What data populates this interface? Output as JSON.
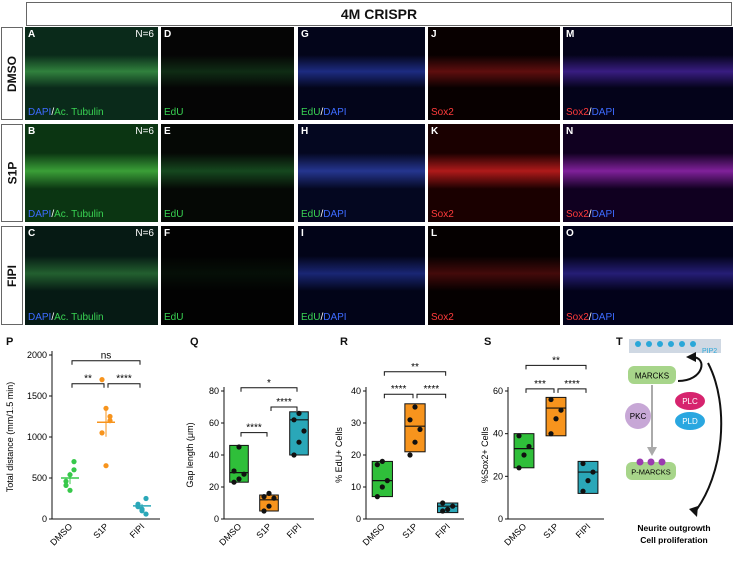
{
  "header": {
    "title": "4M CRISPR"
  },
  "rows": [
    {
      "label": "DMSO",
      "top": "",
      "h": ""
    },
    {
      "label": "S1P"
    },
    {
      "label": "FIPI"
    }
  ],
  "panels": [
    {
      "letter": "A",
      "n": "N=6",
      "cap": [
        [
          "DAPI",
          "b"
        ],
        [
          "/",
          "w"
        ],
        [
          "Ac. Tubulin",
          "g"
        ]
      ]
    },
    {
      "letter": "D",
      "cap": [
        [
          "EdU",
          "g"
        ]
      ]
    },
    {
      "letter": "G",
      "cap": [
        [
          "EdU",
          "g"
        ],
        [
          "/",
          "w"
        ],
        [
          "DAPI",
          "b"
        ]
      ]
    },
    {
      "letter": "J",
      "cap": [
        [
          "Sox2",
          "r"
        ]
      ]
    },
    {
      "letter": "M",
      "cap": [
        [
          "Sox2",
          "r"
        ],
        [
          "/",
          "w"
        ],
        [
          "DAPI",
          "b"
        ]
      ]
    },
    {
      "letter": "B",
      "n": "N=6",
      "cap": [
        [
          "DAPI",
          "b"
        ],
        [
          "/",
          "w"
        ],
        [
          "Ac. Tubulin",
          "g"
        ]
      ]
    },
    {
      "letter": "E",
      "cap": [
        [
          "EdU",
          "g"
        ]
      ]
    },
    {
      "letter": "H",
      "cap": [
        [
          "EdU",
          "g"
        ],
        [
          "/",
          "w"
        ],
        [
          "DAPI",
          "b"
        ]
      ]
    },
    {
      "letter": "K",
      "cap": [
        [
          "Sox2",
          "r"
        ]
      ]
    },
    {
      "letter": "N",
      "cap": [
        [
          "Sox2",
          "r"
        ],
        [
          "/",
          "w"
        ],
        [
          "DAPI",
          "b"
        ]
      ]
    },
    {
      "letter": "C",
      "n": "N=6",
      "cap": [
        [
          "DAPI",
          "b"
        ],
        [
          "/",
          "w"
        ],
        [
          "Ac. Tubulin",
          "g"
        ]
      ]
    },
    {
      "letter": "F",
      "cap": [
        [
          "EdU",
          "g"
        ]
      ]
    },
    {
      "letter": "I",
      "cap": [
        [
          "EdU",
          "g"
        ],
        [
          "/",
          "w"
        ],
        [
          "DAPI",
          "b"
        ]
      ]
    },
    {
      "letter": "L",
      "cap": [
        [
          "Sox2",
          "r"
        ]
      ]
    },
    {
      "letter": "O",
      "cap": [
        [
          "Sox2",
          "r"
        ],
        [
          "/",
          "w"
        ],
        [
          "DAPI",
          "b"
        ]
      ]
    }
  ],
  "chart_data": [
    {
      "panel": "P",
      "type": "scatter",
      "ylabel": "Total distance (mm/1.5 min)",
      "categories": [
        "DMSO",
        "S1P",
        "FIPI"
      ],
      "yticks": [
        0,
        500,
        1000,
        1500,
        2000
      ],
      "ylim": [
        0,
        2000
      ],
      "points": [
        [
          460,
          540,
          600,
          410,
          350,
          700
        ],
        [
          1700,
          1350,
          1200,
          1050,
          650,
          1250
        ],
        [
          150,
          100,
          250,
          180,
          120,
          60
        ]
      ],
      "means": [
        500,
        1180,
        160
      ],
      "sig": [
        {
          "a": 0,
          "b": 1,
          "y": 1650,
          "text": "**"
        },
        {
          "a": 1,
          "b": 2,
          "y": 1650,
          "text": "****"
        },
        {
          "a": 0,
          "b": 2,
          "y": 1930,
          "text": "ns"
        }
      ],
      "colors": [
        "#37c84a",
        "#f7941d",
        "#2aa7b8"
      ]
    },
    {
      "panel": "Q",
      "type": "box",
      "ylabel": "Gap length (μm)",
      "categories": [
        "DMSO",
        "S1P",
        "FIPI"
      ],
      "yticks": [
        0,
        20,
        40,
        60,
        80
      ],
      "ylim": [
        0,
        80
      ],
      "boxes": [
        [
          23,
          25,
          29,
          46
        ],
        [
          5,
          7,
          12,
          15
        ],
        [
          40,
          47,
          62,
          67
        ]
      ],
      "points": [
        [
          23,
          25,
          28,
          30,
          45
        ],
        [
          5,
          8,
          13,
          14,
          16
        ],
        [
          40,
          48,
          55,
          62,
          66
        ]
      ],
      "sig": [
        {
          "a": 0,
          "b": 1,
          "y": 54,
          "text": "****"
        },
        {
          "a": 1,
          "b": 2,
          "y": 70,
          "text": "****"
        },
        {
          "a": 0,
          "b": 2,
          "y": 82,
          "text": "*"
        }
      ],
      "colors": [
        "#2fbf3a",
        "#f7941d",
        "#2aa7b8"
      ]
    },
    {
      "panel": "R",
      "type": "box",
      "ylabel": "% EdU+ Cells",
      "categories": [
        "DMSO",
        "S1P",
        "FIPI"
      ],
      "yticks": [
        0,
        10,
        20,
        30,
        40
      ],
      "ylim": [
        0,
        40
      ],
      "boxes": [
        [
          7,
          9,
          12,
          18
        ],
        [
          21,
          25,
          29,
          36
        ],
        [
          2,
          3,
          4,
          5
        ]
      ],
      "points": [
        [
          7,
          10,
          12,
          17,
          18
        ],
        [
          20,
          24,
          28,
          31,
          35
        ],
        [
          2.5,
          3,
          4,
          5
        ]
      ],
      "sig": [
        {
          "a": 0,
          "b": 1,
          "y": 39,
          "text": "****"
        },
        {
          "a": 1,
          "b": 2,
          "y": 39,
          "text": "****"
        },
        {
          "a": 0,
          "b": 2,
          "y": 46,
          "text": "**"
        }
      ],
      "colors": [
        "#2fbf3a",
        "#f7941d",
        "#2aa7b8"
      ]
    },
    {
      "panel": "S",
      "type": "box",
      "ylabel": "%Sox2+ Cells",
      "categories": [
        "DMSO",
        "S1P",
        "FIPI"
      ],
      "yticks": [
        0,
        20,
        40,
        60
      ],
      "ylim": [
        0,
        60
      ],
      "boxes": [
        [
          24,
          27,
          33,
          40
        ],
        [
          39,
          45,
          52,
          57
        ],
        [
          12,
          16,
          22,
          27
        ]
      ],
      "points": [
        [
          24,
          30,
          34,
          39
        ],
        [
          40,
          47,
          51,
          56
        ],
        [
          13,
          18,
          22,
          26
        ]
      ],
      "sig": [
        {
          "a": 0,
          "b": 1,
          "y": 61,
          "text": "***"
        },
        {
          "a": 1,
          "b": 2,
          "y": 61,
          "text": "****"
        },
        {
          "a": 0,
          "b": 2,
          "y": 72,
          "text": "**"
        }
      ],
      "colors": [
        "#2fbf3a",
        "#f7941d",
        "#2aa7b8"
      ]
    }
  ],
  "pathway": {
    "panel": "T",
    "pip2": "PIP2",
    "marcks": "MARCKS",
    "pkc": "PKC",
    "pmarcks": "P-MARCKS",
    "plc": "PLC",
    "pld": "PLD",
    "outcome1": "Neurite outgrowth",
    "outcome2": "Cell proliferation"
  }
}
